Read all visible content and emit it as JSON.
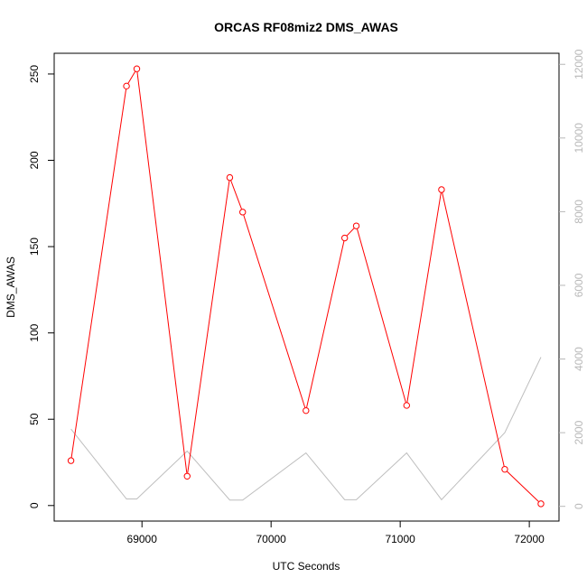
{
  "chart_data": {
    "type": "line",
    "title": "ORCAS RF08miz2 DMS_AWAS",
    "xlabel": "UTC Seconds",
    "ylabel": "DMS_AWAS",
    "xlim": [
      68320,
      72230
    ],
    "ylim": [
      -9,
      262
    ],
    "y2lim": [
      -400,
      12300
    ],
    "x_ticks": [
      69000,
      70000,
      71000,
      72000
    ],
    "y_ticks": [
      0,
      50,
      100,
      150,
      200,
      250
    ],
    "y2_ticks": [
      0,
      2000,
      4000,
      6000,
      8000,
      10000,
      12000
    ],
    "grid": false,
    "colors": {
      "primary": "#ff0000",
      "secondary": "#bebebe",
      "frame": "#000000"
    },
    "series": [
      {
        "axis": "left",
        "style": "line+points",
        "x": [
          68450,
          68880,
          68960,
          69350,
          69680,
          69780,
          70270,
          70570,
          70660,
          71050,
          71320,
          71810,
          72090
        ],
        "y": [
          26,
          243,
          253,
          17,
          190,
          170,
          55,
          155,
          162,
          58,
          183,
          21,
          1
        ]
      },
      {
        "axis": "right",
        "style": "line",
        "x": [
          68450,
          68880,
          68960,
          69350,
          69680,
          69780,
          70270,
          70570,
          70660,
          71050,
          71320,
          71810,
          72090
        ],
        "y": [
          2100,
          200,
          200,
          1500,
          170,
          170,
          1450,
          180,
          180,
          1450,
          180,
          2000,
          4050
        ]
      }
    ]
  }
}
